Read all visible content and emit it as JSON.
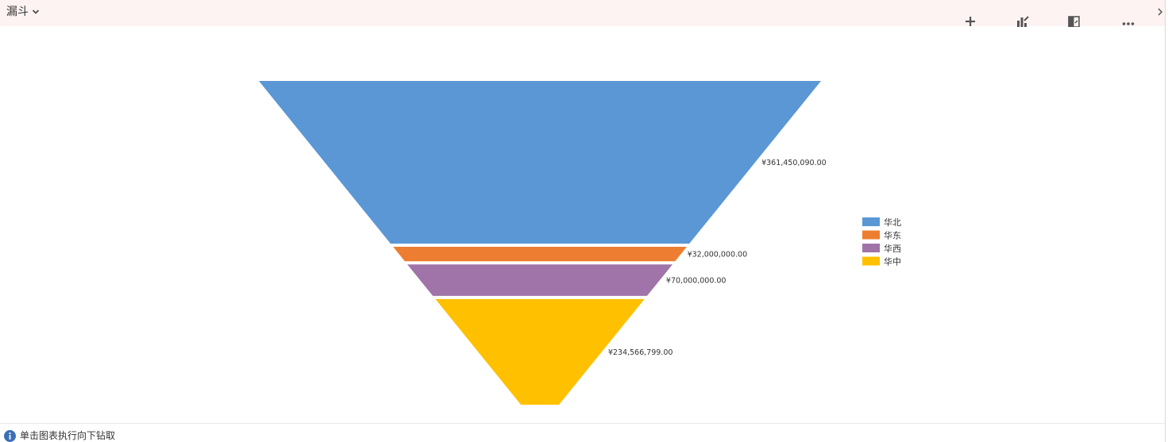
{
  "header": {
    "title": "漏斗",
    "tools": [
      {
        "icon": "add-icon"
      },
      {
        "icon": "drill-chart-icon"
      },
      {
        "icon": "expand-panel-icon"
      },
      {
        "icon": "more-icon"
      }
    ]
  },
  "footer": {
    "hint_icon": "info-icon",
    "hint": "单击图表执行向下钻取"
  },
  "chart_data": {
    "type": "funnel",
    "categories": [
      "华北",
      "华东",
      "华西",
      "华中"
    ],
    "values": [
      361450090.0,
      32000000.0,
      70000000.0,
      234566799.0
    ],
    "data_labels": [
      "¥361,450,090.00",
      "¥32,000,000.00",
      "¥70,000,000.00",
      "¥234,566,799.00"
    ],
    "colors": [
      "#5b97d5",
      "#ed7d31",
      "#a074a8",
      "#ffc000"
    ],
    "legend": {
      "placement": "right",
      "entries": [
        "华北",
        "华东",
        "华西",
        "华中"
      ]
    },
    "title": ""
  }
}
